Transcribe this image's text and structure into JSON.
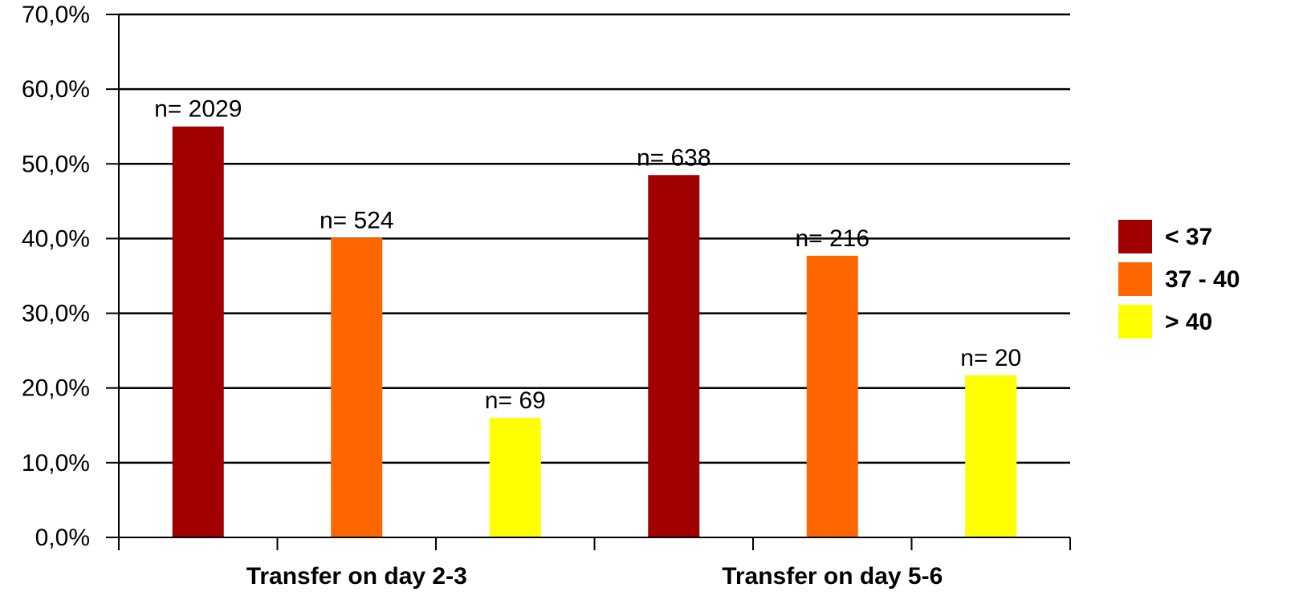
{
  "chart_data": {
    "type": "bar",
    "title": "",
    "xlabel": "",
    "ylabel": "",
    "ylim": [
      0,
      70
    ],
    "yticks": [
      "0,0%",
      "10,0%",
      "20,0%",
      "30,0%",
      "40,0%",
      "50,0%",
      "60,0%",
      "70,0%"
    ],
    "grid": true,
    "legend_position": "right",
    "categories": [
      "Transfer on day 2-3",
      "Transfer on day 5-6"
    ],
    "series": [
      {
        "name": "< 37",
        "color": "#a00000",
        "values": [
          55.0,
          48.5
        ],
        "labels": [
          "n= 2029",
          "n= 638"
        ]
      },
      {
        "name": "37 - 40",
        "color": "#ff6600",
        "values": [
          40.1,
          37.7
        ],
        "labels": [
          "n= 524",
          "n= 216"
        ]
      },
      {
        "name": "> 40",
        "color": "#ffff00",
        "values": [
          16.0,
          21.7
        ],
        "labels": [
          "n= 69",
          "n= 20"
        ]
      }
    ]
  }
}
